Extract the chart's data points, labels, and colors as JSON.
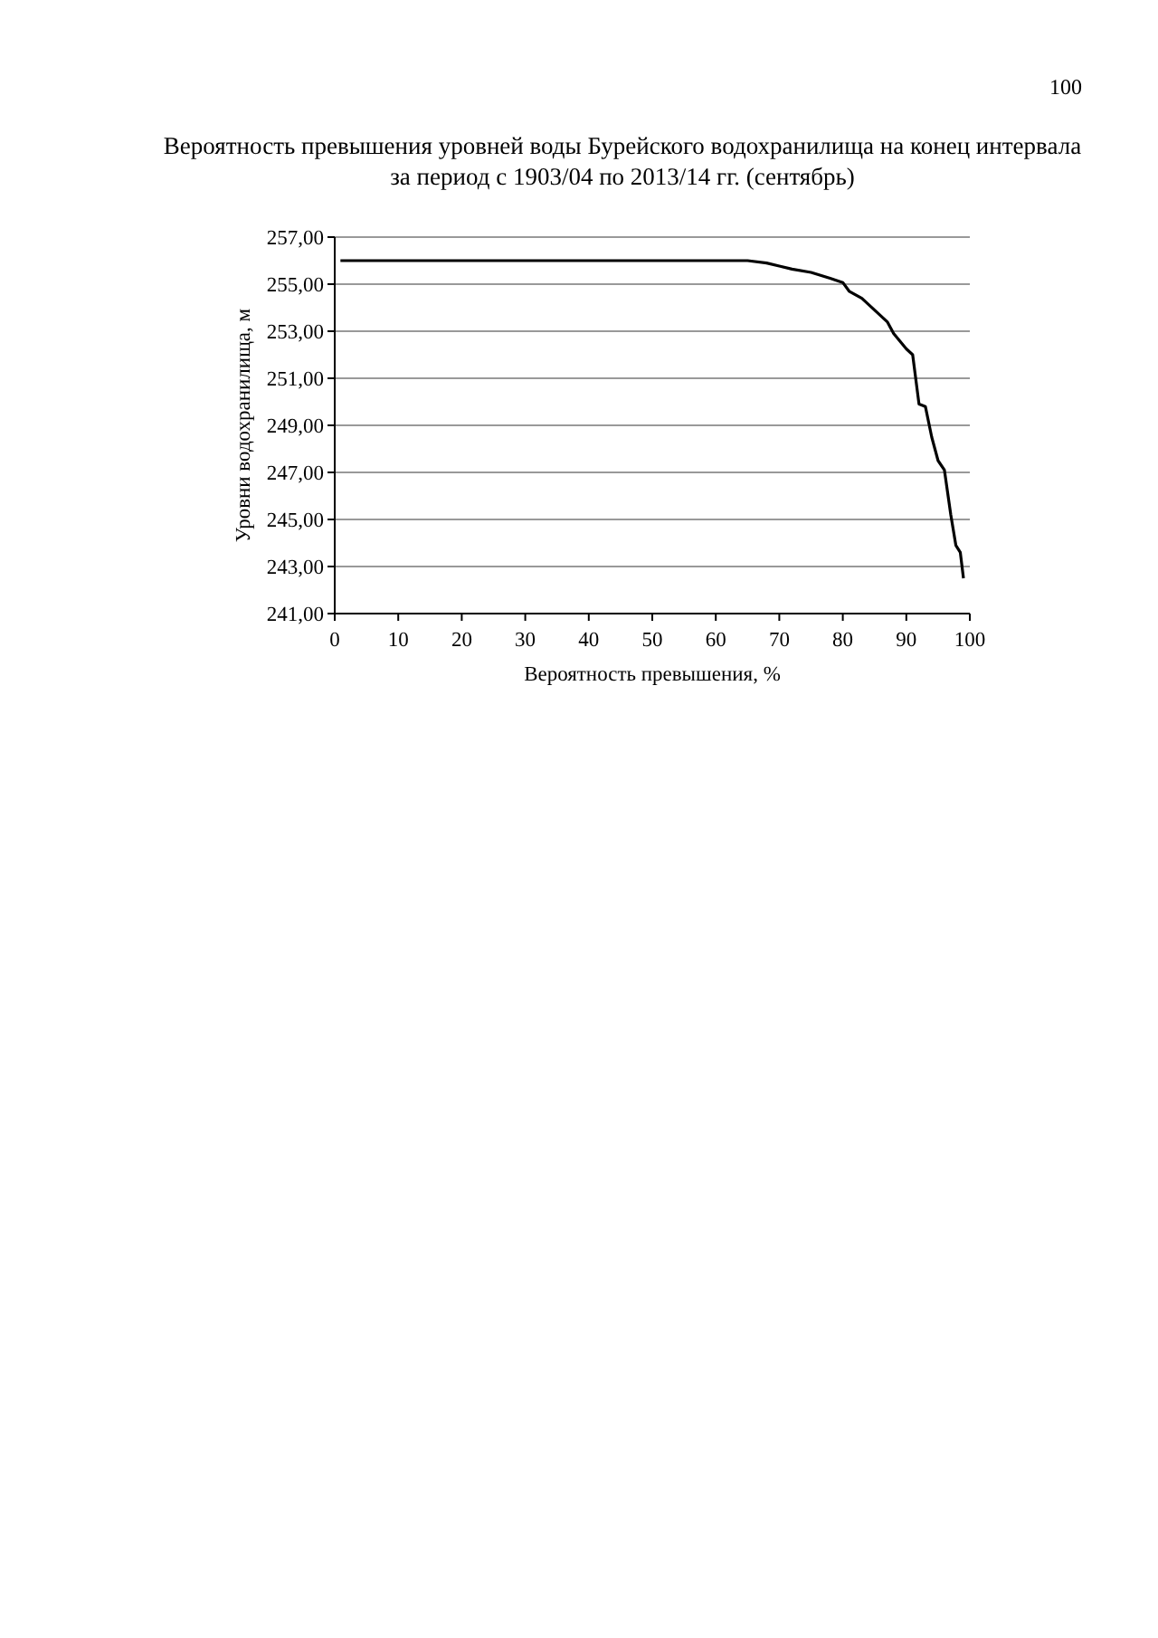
{
  "chart_data": {
    "type": "line",
    "title": "Вероятность превышения уровней воды Бурейского водохранилища на конец интервала",
    "subtitle": "за период с 1903/04 по 2013/14 гг. (сентябрь)",
    "xlabel": "Вероятность превышения, %",
    "ylabel": "Уровни водохранилища, м",
    "annotations": [
      "100"
    ],
    "series": [
      {
        "color": "#000000",
        "x": [
          0.9,
          10,
          20,
          30,
          40,
          50,
          60,
          65,
          68,
          70,
          72,
          75,
          78,
          80,
          81,
          83,
          85,
          87,
          88,
          90,
          91,
          92,
          93,
          94,
          95,
          96,
          97,
          97.8,
          98.5,
          99
        ],
        "values": [
          256.0,
          256.0,
          256.0,
          256.0,
          256.0,
          256.0,
          256.0,
          256.0,
          255.9,
          255.77,
          255.64,
          255.5,
          255.25,
          255.07,
          254.7,
          254.4,
          253.9,
          253.4,
          252.9,
          252.25,
          252.0,
          249.9,
          249.8,
          248.5,
          247.5,
          247.1,
          245.2,
          243.9,
          243.6,
          242.5
        ]
      }
    ],
    "xlim": [
      0,
      100
    ],
    "xticks": [
      0,
      10,
      20,
      30,
      40,
      50,
      60,
      70,
      80,
      90,
      100
    ],
    "ylim": [
      241,
      257
    ],
    "yticks": [
      {
        "value": 241,
        "label": "241,00"
      },
      {
        "value": 243,
        "label": "243,00"
      },
      {
        "value": 245,
        "label": "245,00"
      },
      {
        "value": 247,
        "label": "247,00"
      },
      {
        "value": 249,
        "label": "249,00"
      },
      {
        "value": 251,
        "label": "251,00"
      },
      {
        "value": 253,
        "label": "253,00"
      },
      {
        "value": 255,
        "label": "255,00"
      },
      {
        "value": 257,
        "label": "257,00"
      }
    ],
    "grid": "y",
    "marker": "none",
    "line_style": "solid"
  }
}
